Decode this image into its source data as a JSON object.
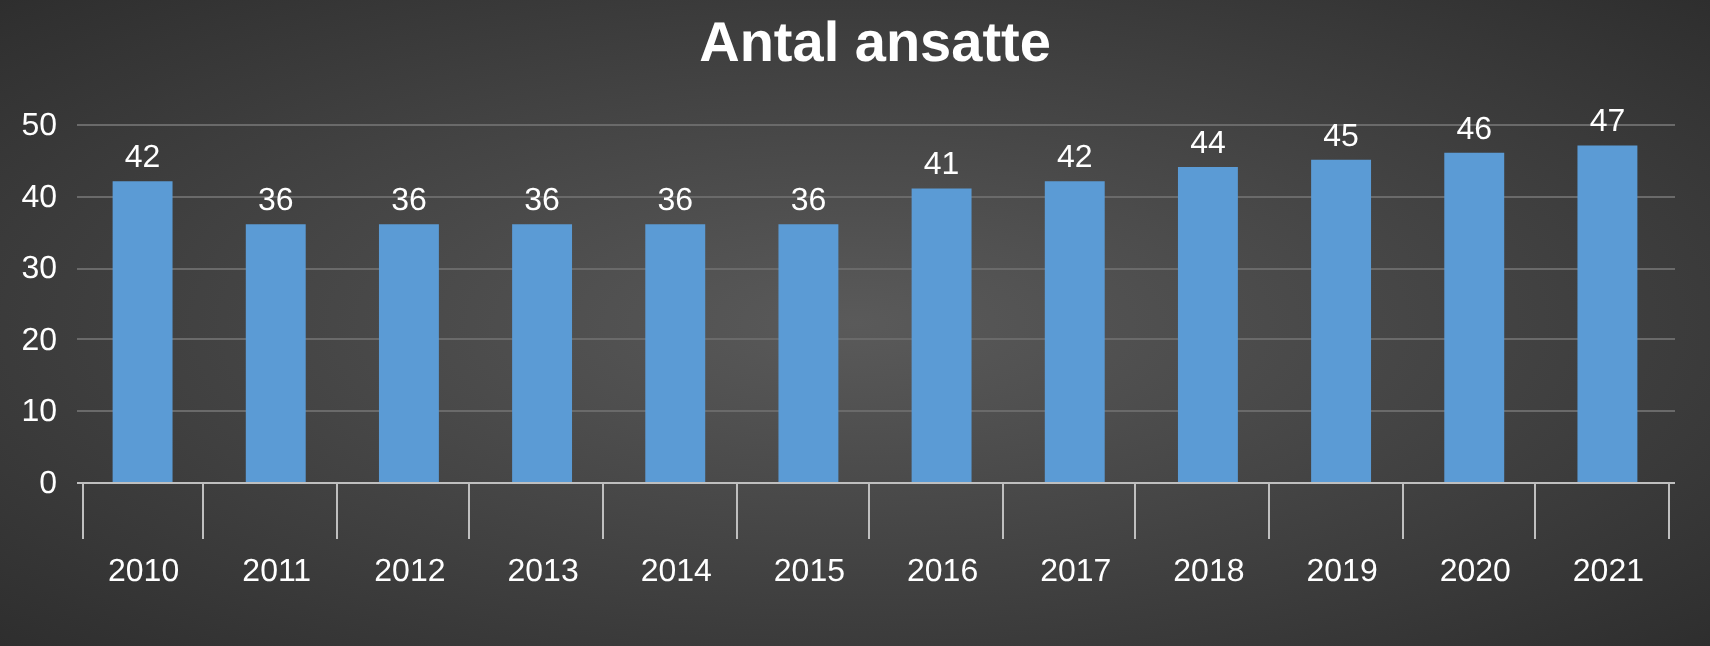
{
  "chart_data": {
    "type": "bar",
    "title": "Antal ansatte",
    "categories": [
      "2010",
      "2011",
      "2012",
      "2013",
      "2014",
      "2015",
      "2016",
      "2017",
      "2018",
      "2019",
      "2020",
      "2021"
    ],
    "values": [
      42,
      36,
      36,
      36,
      36,
      36,
      41,
      42,
      44,
      45,
      46,
      47
    ],
    "color": "#5b9bd5",
    "ylim": [
      0,
      50
    ],
    "yticks": [
      0,
      10,
      20,
      30,
      40,
      50
    ],
    "grid": "y",
    "data_labels": true
  }
}
